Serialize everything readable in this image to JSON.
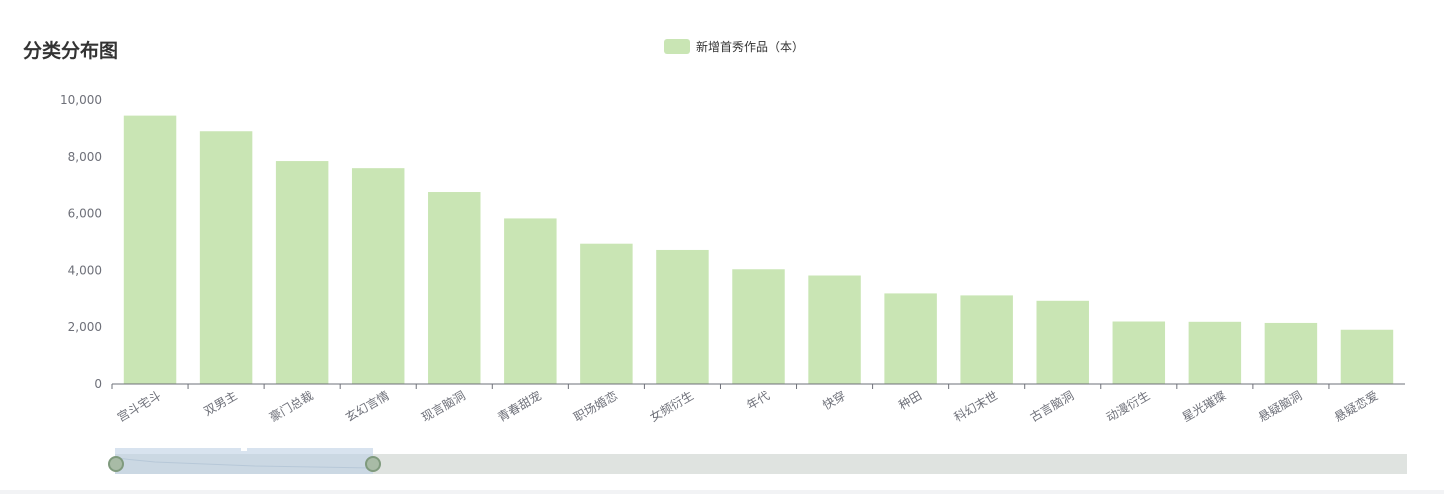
{
  "page": {
    "title": "分类分布图"
  },
  "legend": {
    "label": "新增首秀作品（本）",
    "color": "#c9e5b4"
  },
  "colors": {
    "bar": "#c9e5b4",
    "axis_text": "#6e7079",
    "axis_line": "#6e7079"
  },
  "chart_data": {
    "type": "bar",
    "title": "分类分布图",
    "categories": [
      "宫斗宅斗",
      "双男主",
      "豪门总裁",
      "玄幻言情",
      "现言脑洞",
      "青春甜宠",
      "职场婚恋",
      "女频衍生",
      "年代",
      "快穿",
      "种田",
      "科幻末世",
      "古言脑洞",
      "动漫衍生",
      "星光璀璨",
      "悬疑脑洞",
      "悬疑恋爱"
    ],
    "series": [
      {
        "name": "新增首秀作品（本）",
        "values": [
          9450,
          8900,
          7850,
          7600,
          6760,
          5830,
          4940,
          4720,
          4040,
          3820,
          3190,
          3120,
          2930,
          2200,
          2190,
          2150,
          1910
        ]
      }
    ],
    "yticks": [
      "0",
      "2,000",
      "4,000",
      "6,000",
      "8,000",
      "10,000"
    ],
    "ylim": [
      0,
      10000
    ],
    "grid": false,
    "legend_position": "top-center",
    "x_label_rotation": "rotated"
  }
}
